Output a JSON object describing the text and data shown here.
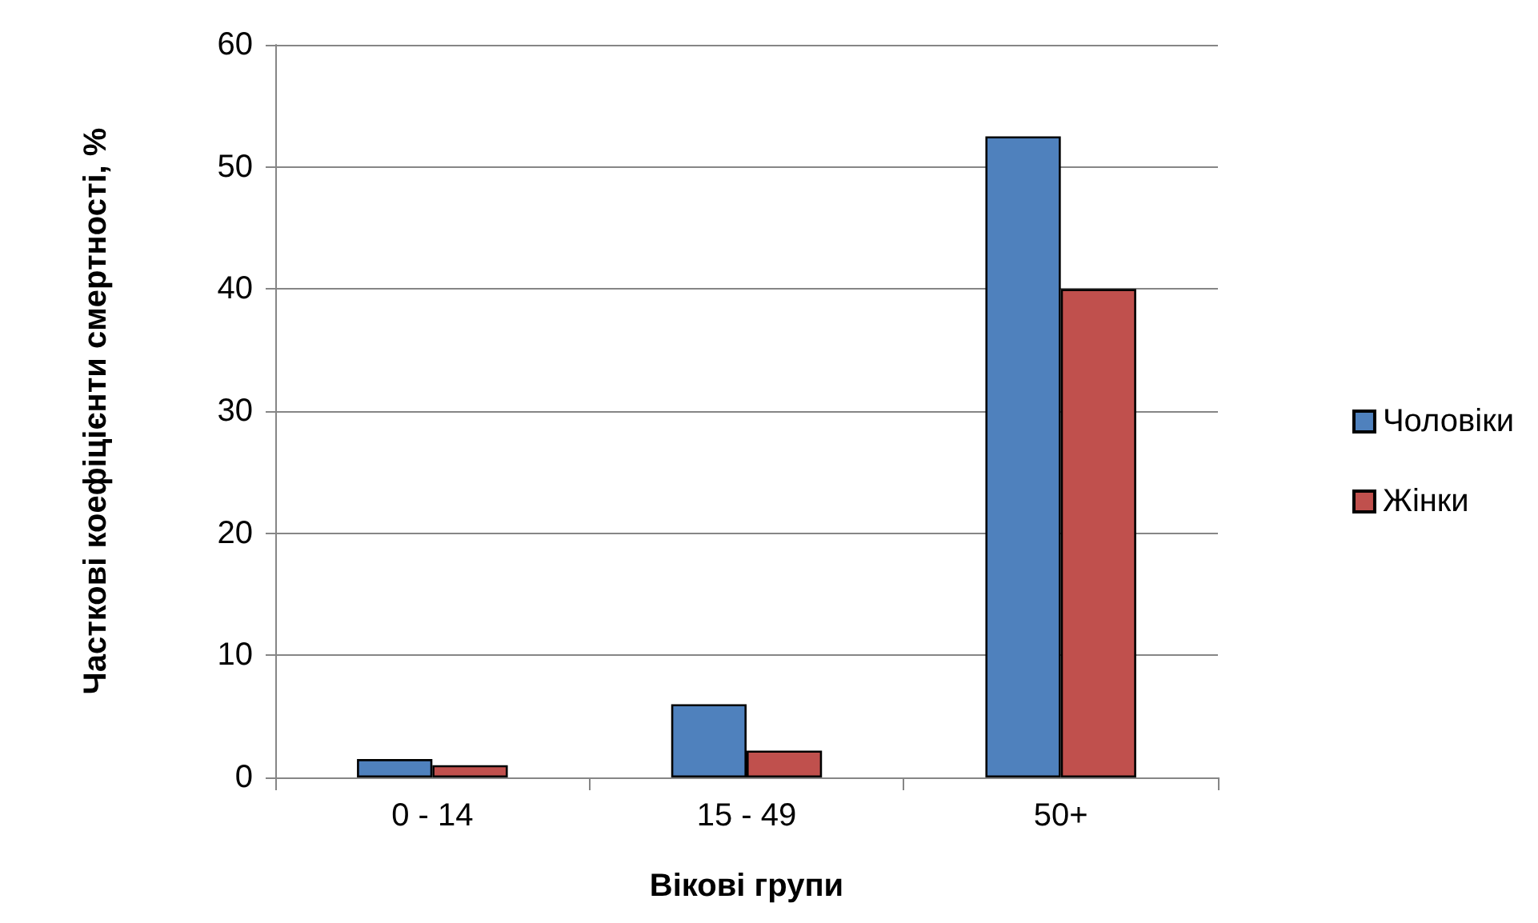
{
  "chart_data": {
    "type": "bar",
    "xlabel": "Вікові групи",
    "ylabel": "Часткові коефіцієнти смертності, %",
    "categories": [
      "0 - 14",
      "15 - 49",
      "50+"
    ],
    "series": [
      {
        "name": "Чоловіки",
        "color": "#4f81bd",
        "values": [
          1.5,
          6,
          52.5
        ]
      },
      {
        "name": "Жінки",
        "color": "#c0504d",
        "values": [
          1,
          2.2,
          40
        ]
      }
    ],
    "ylim": [
      0,
      60
    ],
    "yticks": [
      0,
      10,
      20,
      30,
      40,
      50,
      60
    ],
    "grid": "y",
    "legend": "right"
  }
}
